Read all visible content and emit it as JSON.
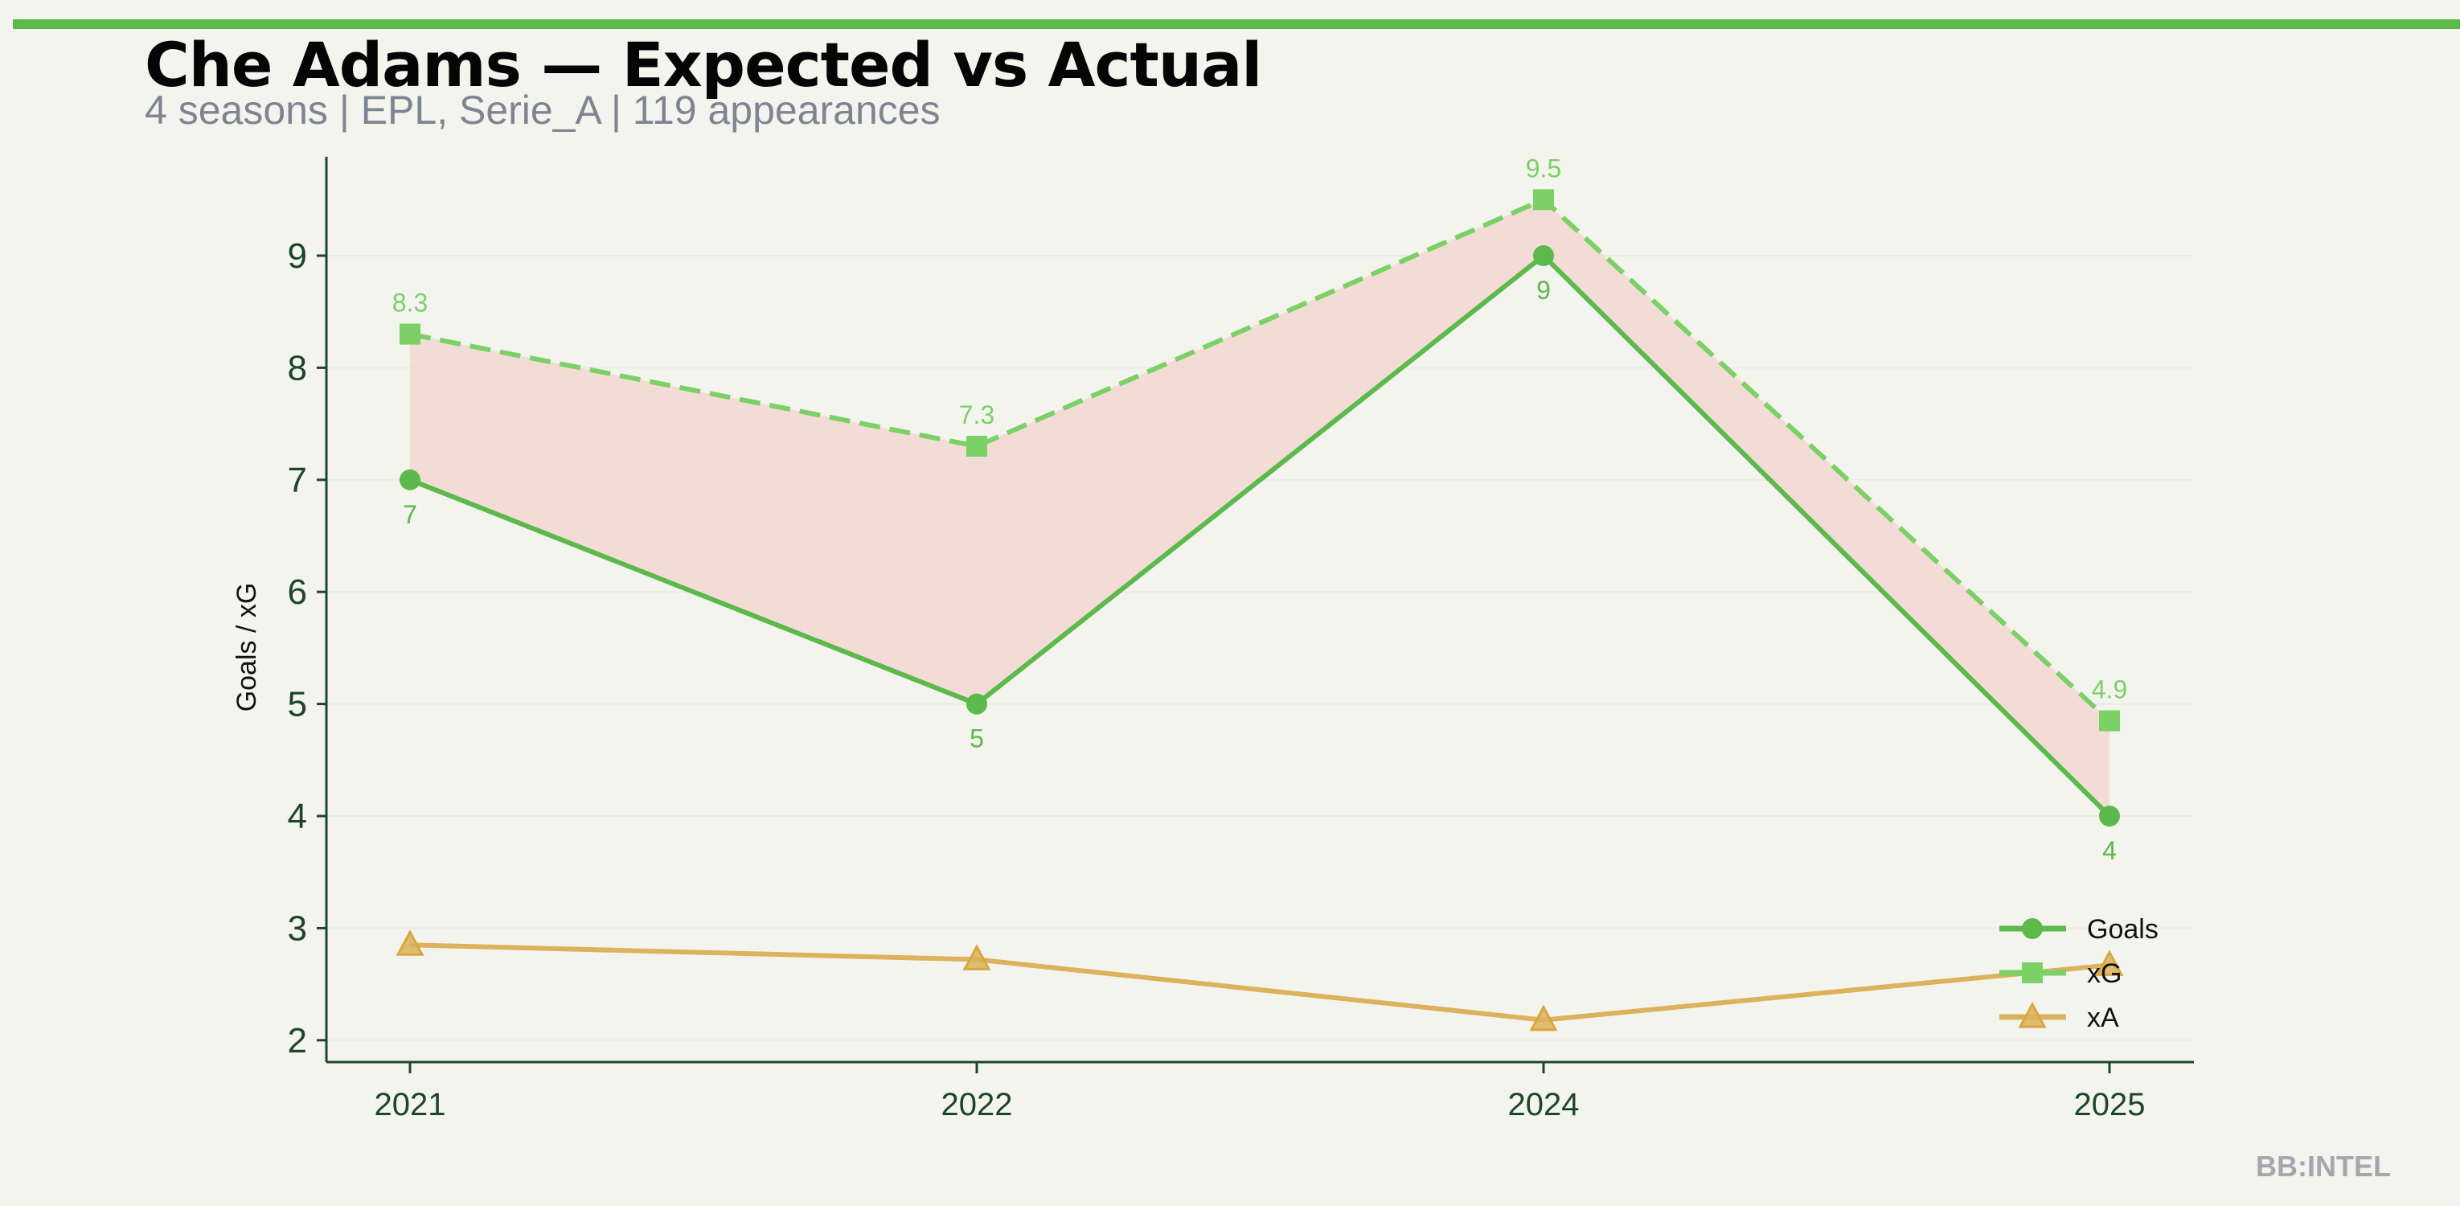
{
  "header": {
    "title": "Che Adams — Expected vs Actual",
    "subtitle": "4 seasons | EPL, Serie_A | 119 appearances",
    "accent_color": "#5cb94b"
  },
  "brand": "BB:INTEL",
  "chart_data": {
    "type": "line",
    "categories": [
      "2021",
      "2022",
      "2024",
      "2025"
    ],
    "ylabel": "Goals / xG",
    "xlabel": "",
    "ylim": [
      1.8,
      9.9
    ],
    "yticks": [
      2,
      3,
      4,
      5,
      6,
      7,
      8,
      9
    ],
    "grid": true,
    "legend_position": "bottom-right",
    "shaded_between": [
      "Goals",
      "xG"
    ],
    "shade_color": "#f4d6d0",
    "series": [
      {
        "name": "Goals",
        "values": [
          7,
          5,
          9,
          4
        ],
        "labels": [
          "7",
          "5",
          "9",
          "4"
        ],
        "color": "#5cb94b",
        "marker": "circle",
        "style": "solid"
      },
      {
        "name": "xG",
        "values": [
          8.3,
          7.3,
          9.5,
          4.85
        ],
        "labels": [
          "8.3",
          "7.3",
          "9.5",
          "4.9"
        ],
        "color": "#7bd165",
        "marker": "square",
        "style": "dashed"
      },
      {
        "name": "xA",
        "values": [
          2.85,
          2.72,
          2.18,
          2.67
        ],
        "color": "#dcb25c",
        "marker": "triangle",
        "style": "solid"
      }
    ]
  }
}
